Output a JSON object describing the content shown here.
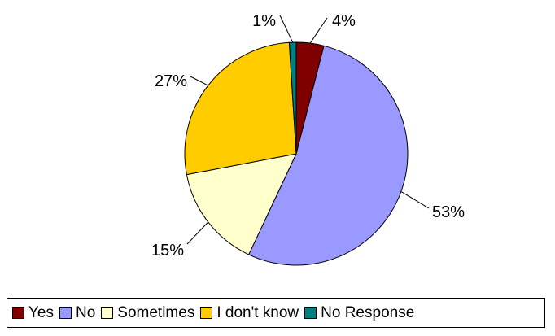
{
  "chart_data": {
    "type": "pie",
    "title": "",
    "slices": [
      {
        "label": "Yes",
        "value": 4,
        "value_label": "4%",
        "color": "#800000"
      },
      {
        "label": "No",
        "value": 53,
        "value_label": "53%",
        "color": "#9999FF"
      },
      {
        "label": "Sometimes",
        "value": 15,
        "value_label": "15%",
        "color": "#FFFFCC"
      },
      {
        "label": "I don't know",
        "value": 27,
        "value_label": "27%",
        "color": "#FFCC00"
      },
      {
        "label": "No Response",
        "value": 1,
        "value_label": "1%",
        "color": "#008080"
      }
    ],
    "legend_position": "bottom",
    "start_angle": "top, clockwise"
  }
}
